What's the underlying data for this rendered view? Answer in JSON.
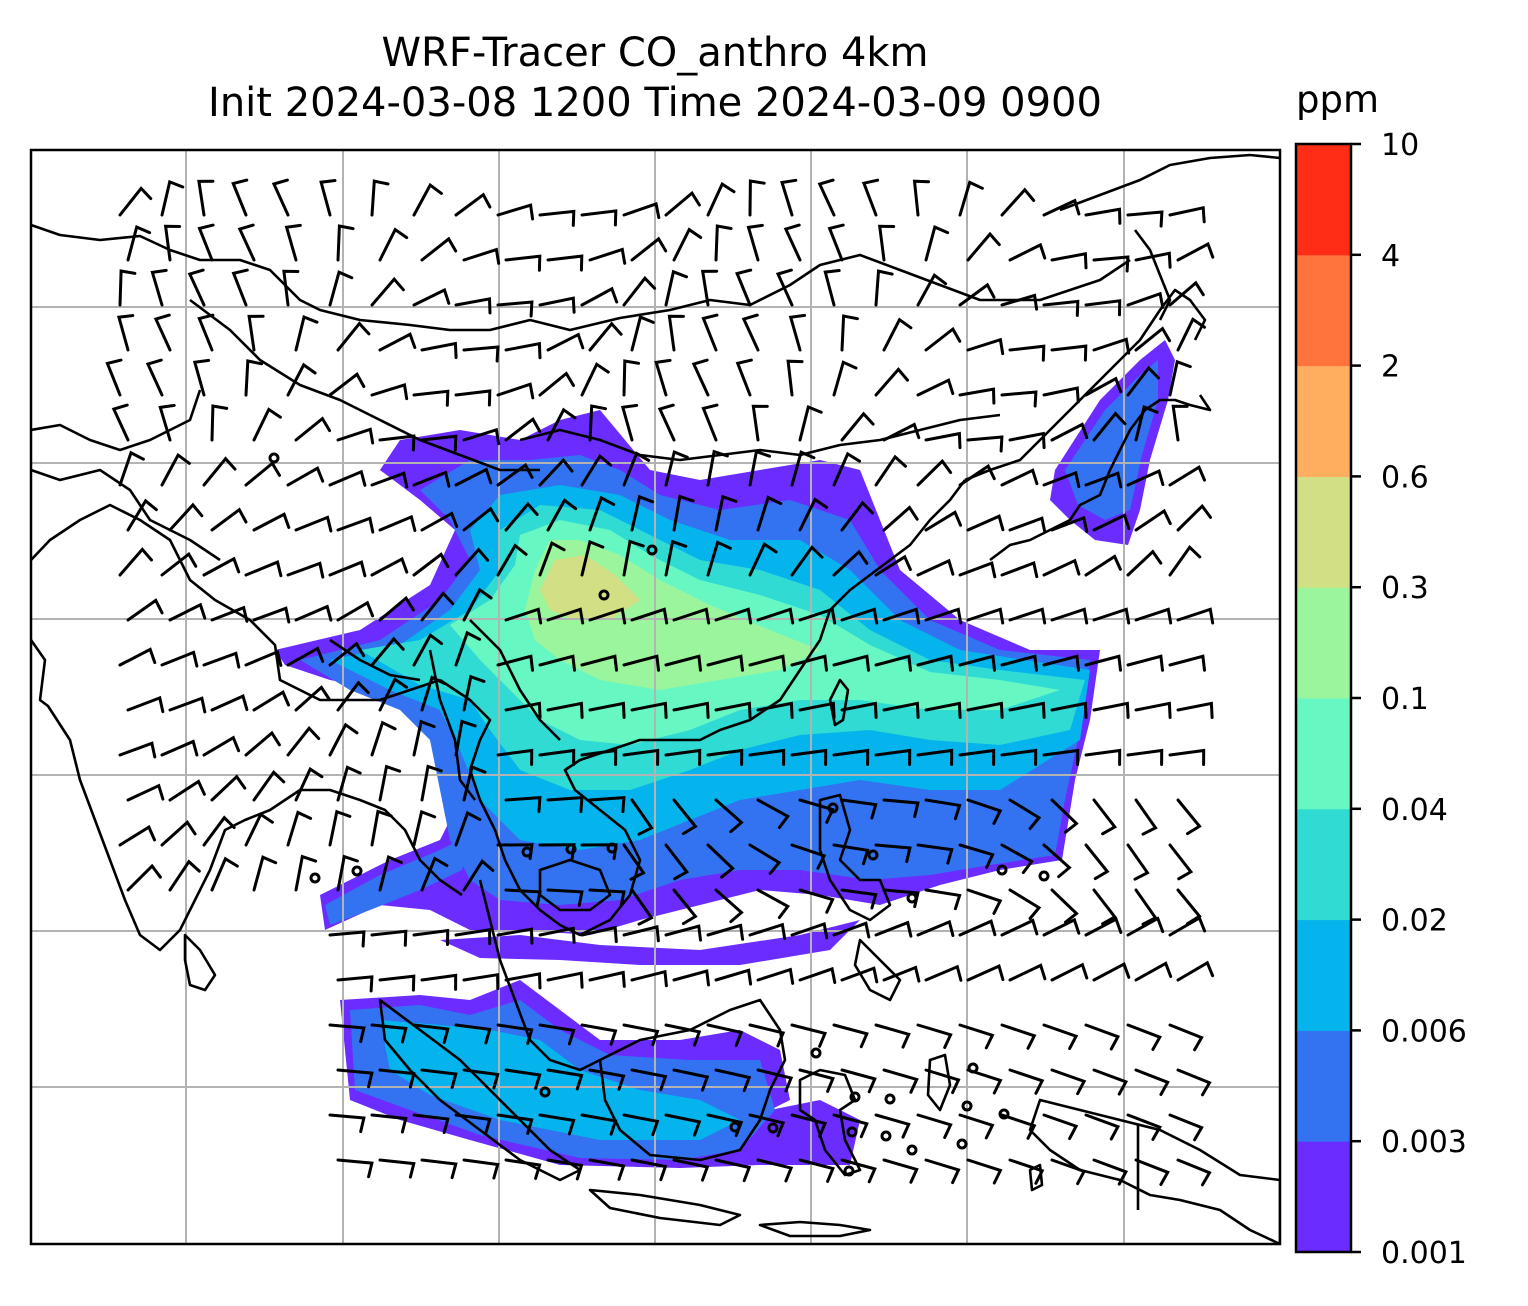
{
  "title": {
    "line1": "WRF-Tracer CO_anthro 4km",
    "line2": "Init 2024-03-08 1200 Time 2024-03-09 0900"
  },
  "colorbar": {
    "unit": "ppm",
    "levels": [
      "0.001",
      "0.003",
      "0.006",
      "0.02",
      "0.04",
      "0.1",
      "0.3",
      "0.6",
      "2",
      "4",
      "10"
    ],
    "colors": [
      "#6a2cff",
      "#3373f2",
      "#05b4ec",
      "#2fdbd2",
      "#67f7c2",
      "#9af59c",
      "#d2df85",
      "#ffad5f",
      "#ff743d",
      "#ff2d16"
    ]
  },
  "map": {
    "grid": true,
    "features": [
      "coastlines",
      "country-borders",
      "wind-barbs",
      "co-tracer-shading"
    ],
    "plume_color_order": [
      "#6a2cff",
      "#3373f2",
      "#05b4ec",
      "#2fdbd2",
      "#67f7c2",
      "#9af59c",
      "#d2df85"
    ]
  }
}
